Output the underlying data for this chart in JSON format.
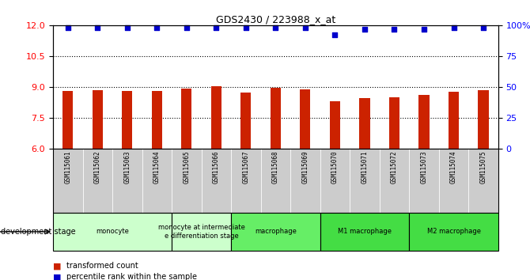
{
  "title": "GDS2430 / 223988_x_at",
  "samples": [
    "GSM115061",
    "GSM115062",
    "GSM115063",
    "GSM115064",
    "GSM115065",
    "GSM115066",
    "GSM115067",
    "GSM115068",
    "GSM115069",
    "GSM115070",
    "GSM115071",
    "GSM115072",
    "GSM115073",
    "GSM115074",
    "GSM115075"
  ],
  "bar_values": [
    8.8,
    8.85,
    8.8,
    8.8,
    8.9,
    9.02,
    8.72,
    8.95,
    8.87,
    8.3,
    8.45,
    8.5,
    8.6,
    8.75,
    8.85
  ],
  "percentile_values": [
    98,
    98,
    98,
    98,
    98,
    98,
    98,
    98,
    98,
    92,
    97,
    97,
    97,
    98,
    98
  ],
  "bar_color": "#cc2200",
  "dot_color": "#0000cc",
  "ylim_left": [
    6,
    12
  ],
  "yticks_left": [
    6,
    7.5,
    9,
    10.5,
    12
  ],
  "ylim_right": [
    0,
    100
  ],
  "yticks_right": [
    0,
    25,
    50,
    75,
    100
  ],
  "grid_values": [
    7.5,
    9.0,
    10.5
  ],
  "stage_groups": [
    {
      "label": "monocyte",
      "start": 0,
      "end": 3,
      "color": "#ccffcc"
    },
    {
      "label": "monocyte at intermediate\ne differentiation stage",
      "start": 4,
      "end": 5,
      "color": "#ccffcc"
    },
    {
      "label": "macrophage",
      "start": 6,
      "end": 8,
      "color": "#66ee66"
    },
    {
      "label": "M1 macrophage",
      "start": 9,
      "end": 11,
      "color": "#44dd44"
    },
    {
      "label": "M2 macrophage",
      "start": 12,
      "end": 14,
      "color": "#44dd44"
    }
  ],
  "xlabel_stage": "development stage",
  "legend_bar_label": "transformed count",
  "legend_dot_label": "percentile rank within the sample",
  "bar_width": 0.35,
  "base_value": 6,
  "tick_bg_color": "#cccccc"
}
